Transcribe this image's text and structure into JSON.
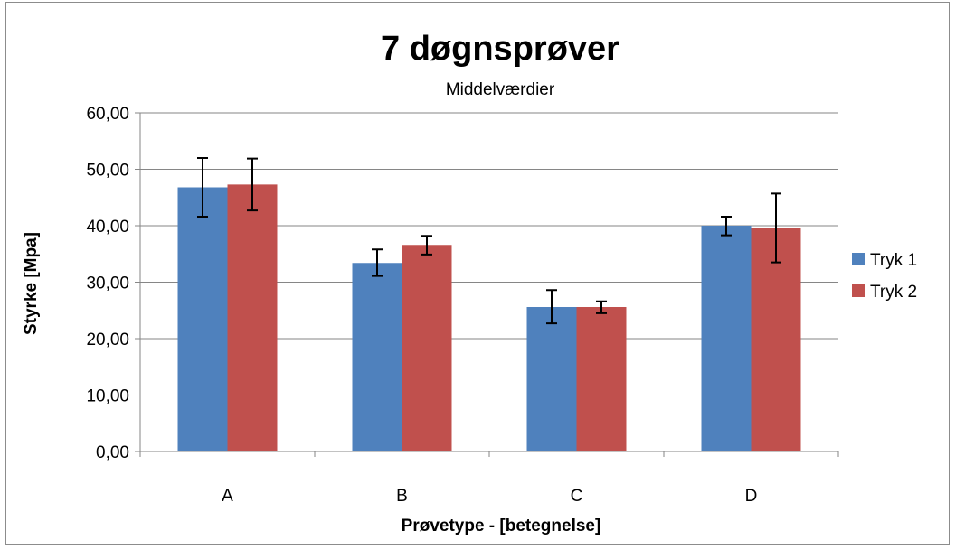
{
  "chart_data": {
    "type": "bar",
    "title": "7 døgnsprøver",
    "subtitle": "Middelværdier",
    "xlabel": "Prøvetype - [betegnelse]",
    "ylabel": "Styrke [Mpa]",
    "categories": [
      "A",
      "B",
      "C",
      "D"
    ],
    "ylim": [
      0,
      60
    ],
    "yticks": [
      0,
      10,
      20,
      30,
      40,
      50,
      60
    ],
    "ytick_labels": [
      "0,00",
      "10,00",
      "20,00",
      "30,00",
      "40,00",
      "50,00",
      "60,00"
    ],
    "grid": true,
    "legend_position": "right",
    "series": [
      {
        "name": "Tryk 1",
        "color": "#4F81BD",
        "values": [
          46.8,
          33.4,
          25.6,
          40.0
        ],
        "error_low": [
          41.6,
          31.1,
          22.7,
          38.3
        ],
        "error_high": [
          52.0,
          35.8,
          28.6,
          41.6
        ]
      },
      {
        "name": "Tryk 2",
        "color": "#C0504D",
        "values": [
          47.3,
          36.6,
          25.6,
          39.6
        ],
        "error_low": [
          42.7,
          34.9,
          24.5,
          33.5
        ],
        "error_high": [
          51.9,
          38.2,
          26.6,
          45.7
        ]
      }
    ]
  }
}
